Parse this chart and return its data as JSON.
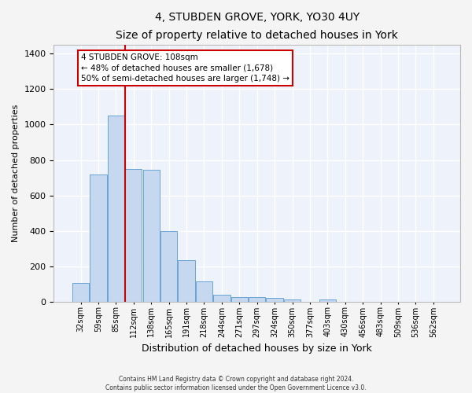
{
  "title": "4, STUBDEN GROVE, YORK, YO30 4UY",
  "subtitle": "Size of property relative to detached houses in York",
  "xlabel": "Distribution of detached houses by size in York",
  "ylabel": "Number of detached properties",
  "categories": [
    "32sqm",
    "59sqm",
    "85sqm",
    "112sqm",
    "138sqm",
    "165sqm",
    "191sqm",
    "218sqm",
    "244sqm",
    "271sqm",
    "297sqm",
    "324sqm",
    "350sqm",
    "377sqm",
    "403sqm",
    "430sqm",
    "456sqm",
    "483sqm",
    "509sqm",
    "536sqm",
    "562sqm"
  ],
  "values": [
    105,
    720,
    1050,
    750,
    745,
    400,
    235,
    115,
    40,
    25,
    25,
    20,
    10,
    0,
    10,
    0,
    0,
    0,
    0,
    0,
    0
  ],
  "bar_color": "#c5d8f0",
  "bar_edgecolor": "#6aa3d4",
  "annotation_text_line1": "4 STUBDEN GROVE: 108sqm",
  "annotation_text_line2": "← 48% of detached houses are smaller (1,678)",
  "annotation_text_line3": "50% of semi-detached houses are larger (1,748) →",
  "annotation_box_color": "#cc0000",
  "vline_color": "#cc0000",
  "background_color": "#eef2fb",
  "grid_color": "#ffffff",
  "fig_facecolor": "#f4f4f4",
  "footnote1": "Contains HM Land Registry data © Crown copyright and database right 2024.",
  "footnote2": "Contains public sector information licensed under the Open Government Licence v3.0.",
  "ylim": [
    0,
    1450
  ],
  "vline_bar_index": 2.5
}
